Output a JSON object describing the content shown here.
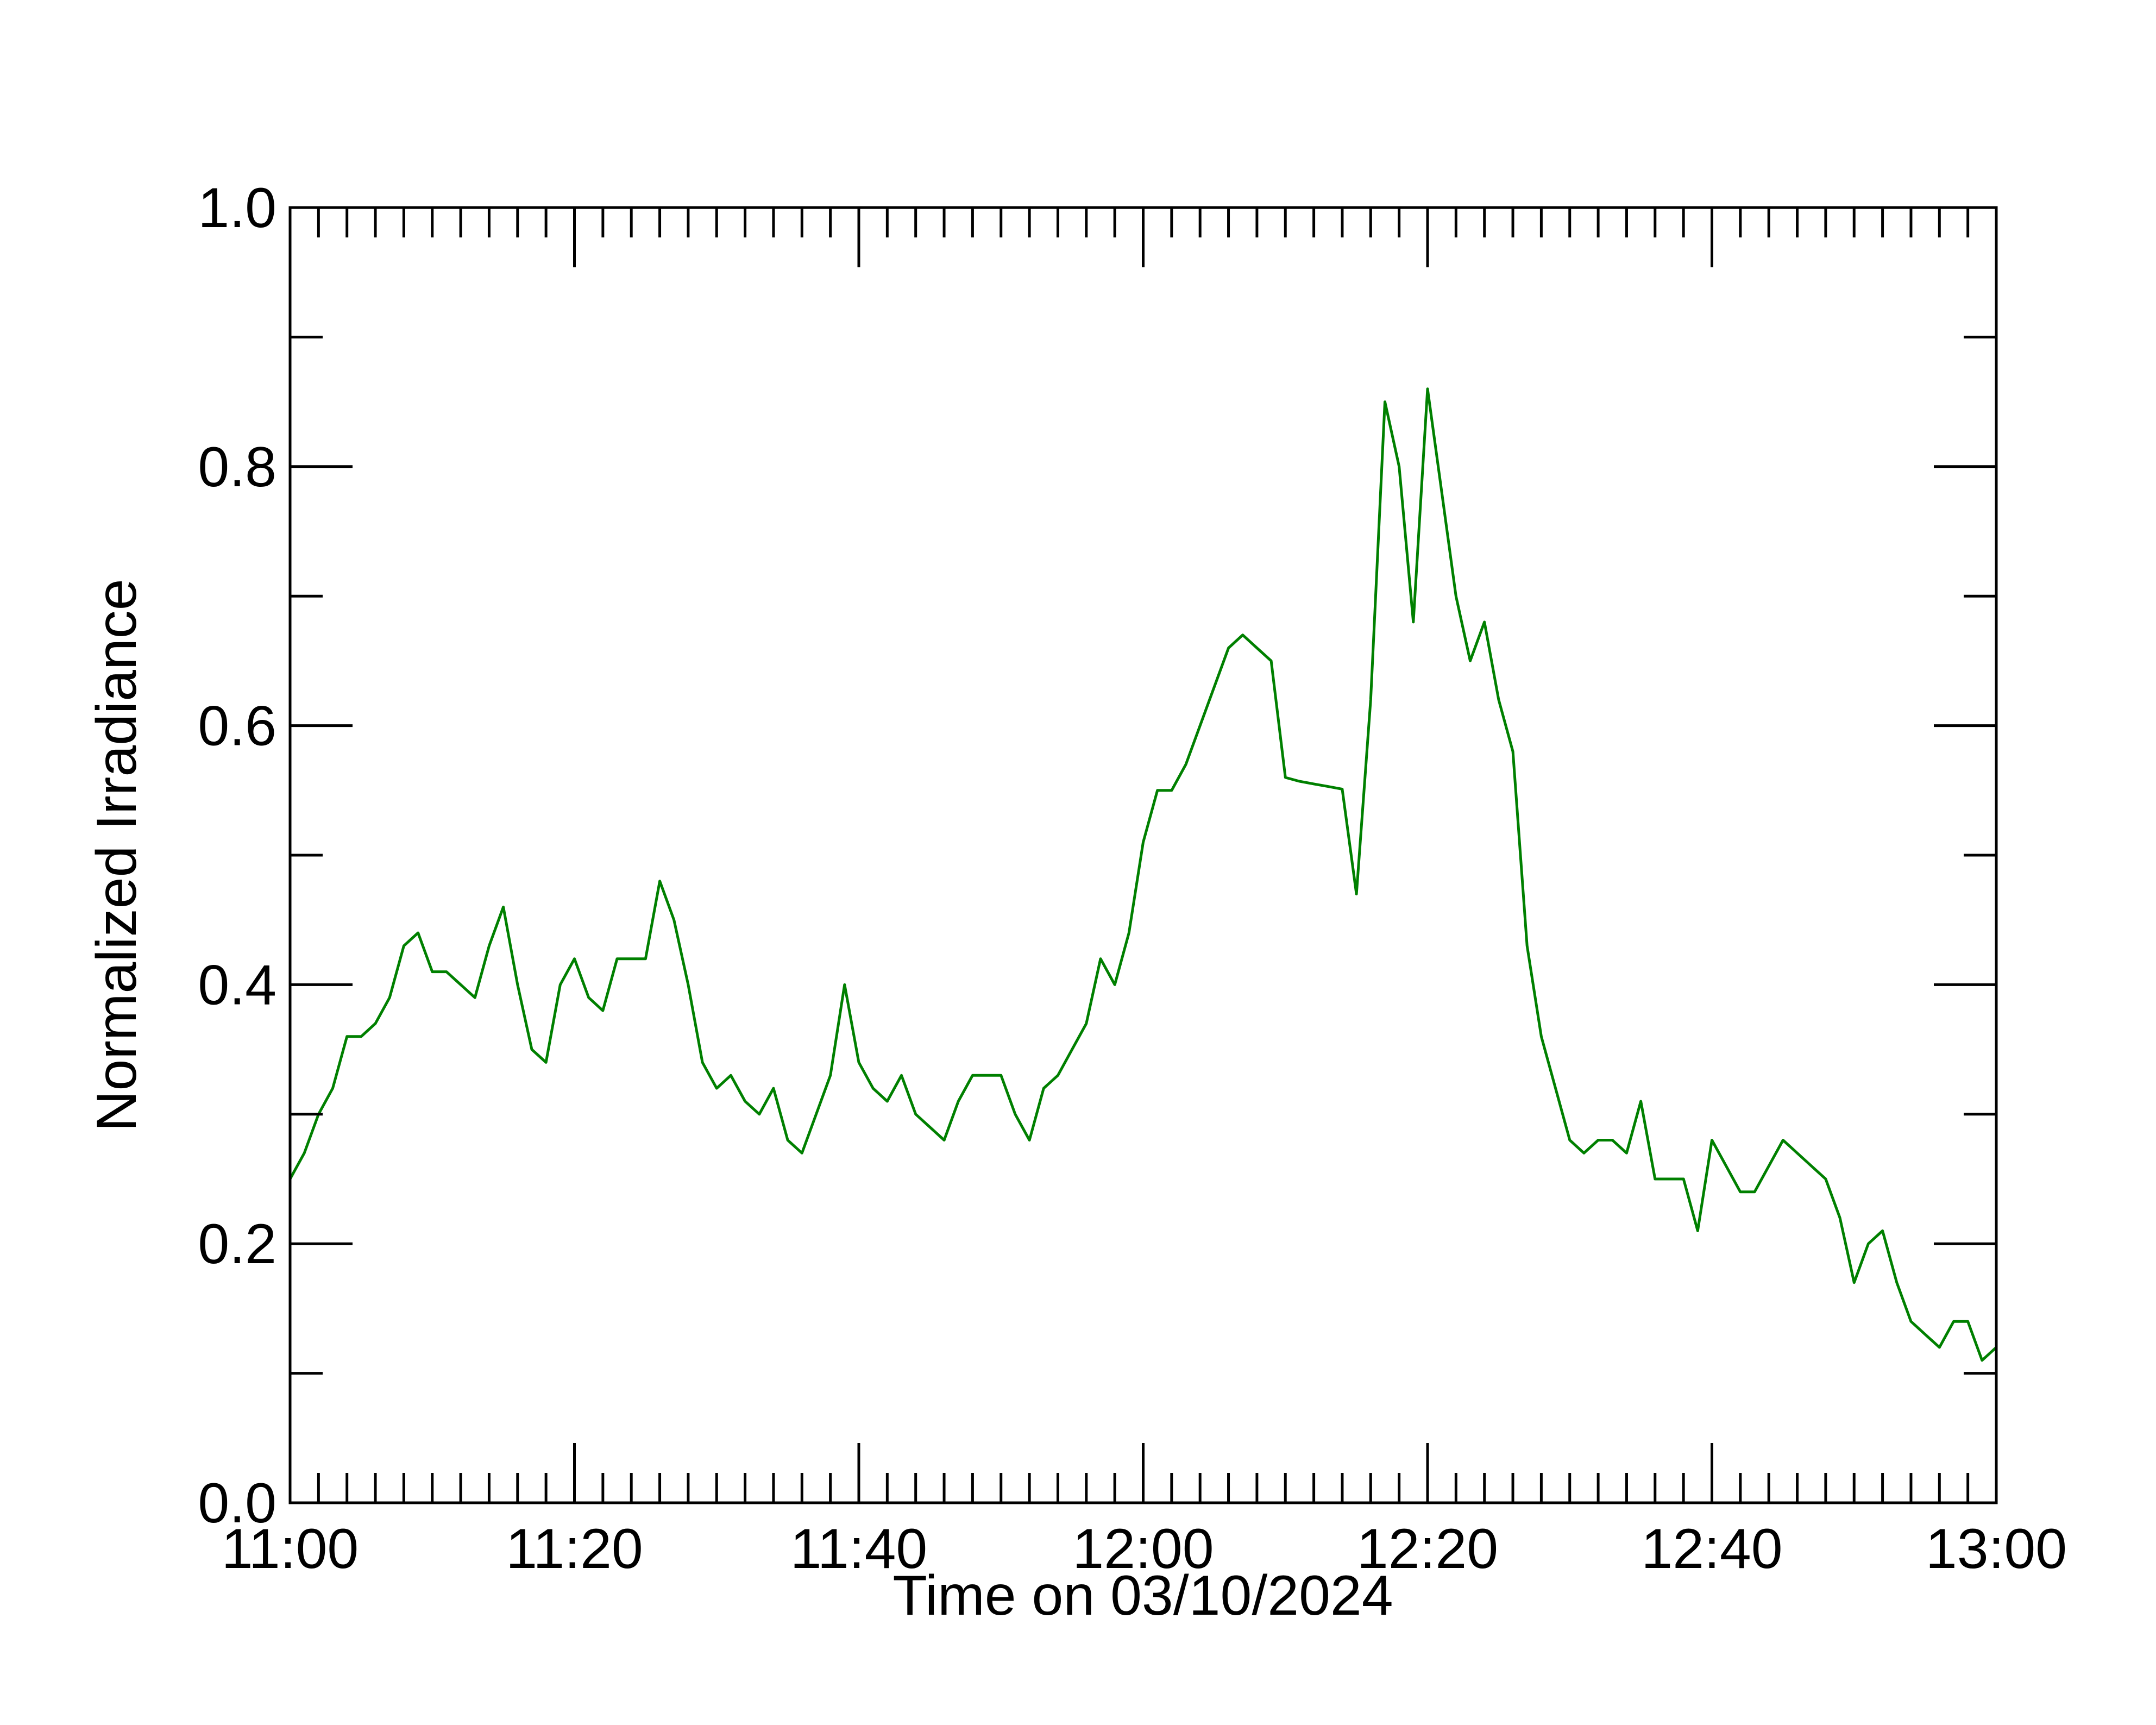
{
  "chart_data": {
    "type": "line",
    "xlabel": "Time on 03/10/2024",
    "ylabel": "Normalized Irradiance",
    "color": "#008000",
    "x": [
      "11:00",
      "11:01",
      "11:02",
      "11:03",
      "11:04",
      "11:05",
      "11:06",
      "11:07",
      "11:08",
      "11:09",
      "11:10",
      "11:11",
      "11:12",
      "11:13",
      "11:14",
      "11:15",
      "11:16",
      "11:17",
      "11:18",
      "11:19",
      "11:20",
      "11:21",
      "11:22",
      "11:23",
      "11:24",
      "11:25",
      "11:26",
      "11:27",
      "11:28",
      "11:29",
      "11:30",
      "11:31",
      "11:32",
      "11:33",
      "11:34",
      "11:35",
      "11:36",
      "11:37",
      "11:38",
      "11:39",
      "11:40",
      "11:41",
      "11:42",
      "11:43",
      "11:44",
      "11:45",
      "11:46",
      "11:47",
      "11:48",
      "11:49",
      "11:50",
      "11:51",
      "11:52",
      "11:53",
      "11:54",
      "11:55",
      "11:56",
      "11:57",
      "11:58",
      "11:59",
      "12:00",
      "12:01",
      "12:02",
      "12:03",
      "12:04",
      "12:05",
      "12:06",
      "12:07",
      "12:08",
      "12:09",
      "12:10",
      "12:11",
      "12:12",
      "12:13",
      "12:14",
      "12:15",
      "12:16",
      "12:17",
      "12:18",
      "12:19",
      "12:20",
      "12:21",
      "12:22",
      "12:23",
      "12:24",
      "12:25",
      "12:26",
      "12:27",
      "12:28",
      "12:29",
      "12:30",
      "12:31",
      "12:32",
      "12:33",
      "12:34",
      "12:35",
      "12:36",
      "12:37",
      "12:38",
      "12:39",
      "12:40",
      "12:41",
      "12:42",
      "12:43",
      "12:44",
      "12:45",
      "12:46",
      "12:47",
      "12:48",
      "12:49",
      "12:50",
      "12:51",
      "12:52",
      "12:53",
      "12:54",
      "12:55",
      "12:56",
      "12:57",
      "12:58",
      "12:59",
      "13:00"
    ],
    "values": [
      0.25,
      0.27,
      0.3,
      0.32,
      0.36,
      0.36,
      0.37,
      0.39,
      0.43,
      0.44,
      0.41,
      0.41,
      0.4,
      0.39,
      0.43,
      0.46,
      0.4,
      0.35,
      0.34,
      0.4,
      0.42,
      0.39,
      0.38,
      0.42,
      0.42,
      0.42,
      0.48,
      0.45,
      0.4,
      0.34,
      0.32,
      0.33,
      0.31,
      0.3,
      0.32,
      0.28,
      0.27,
      0.3,
      0.33,
      0.4,
      0.34,
      0.32,
      0.31,
      0.33,
      0.3,
      0.29,
      0.28,
      0.31,
      0.33,
      0.33,
      0.33,
      0.3,
      0.28,
      0.32,
      0.33,
      0.35,
      0.37,
      0.42,
      0.4,
      0.44,
      0.51,
      0.55,
      0.55,
      0.57,
      0.6,
      0.63,
      0.66,
      0.67,
      0.66,
      0.65,
      0.56,
      0.557,
      0.555,
      0.553,
      0.551,
      0.47,
      0.62,
      0.85,
      0.8,
      0.68,
      0.86,
      0.78,
      0.7,
      0.65,
      0.68,
      0.62,
      0.58,
      0.43,
      0.36,
      0.32,
      0.28,
      0.27,
      0.28,
      0.28,
      0.27,
      0.31,
      0.25,
      0.25,
      0.25,
      0.21,
      0.28,
      0.26,
      0.24,
      0.24,
      0.26,
      0.28,
      0.27,
      0.26,
      0.25,
      0.22,
      0.17,
      0.2,
      0.21,
      0.17,
      0.14,
      0.13,
      0.12,
      0.14,
      0.14,
      0.11,
      0.12
    ],
    "xlim": [
      "11:00",
      "13:00"
    ],
    "xticks": [
      "11:00",
      "11:20",
      "11:40",
      "12:00",
      "12:20",
      "12:40",
      "13:00"
    ],
    "ylim": [
      0,
      1
    ],
    "yticks": [
      {
        "value": 0,
        "label": "0.0"
      },
      0.2,
      0.4,
      0.6,
      0.8,
      {
        "value": 1,
        "label": "1.0"
      }
    ]
  }
}
